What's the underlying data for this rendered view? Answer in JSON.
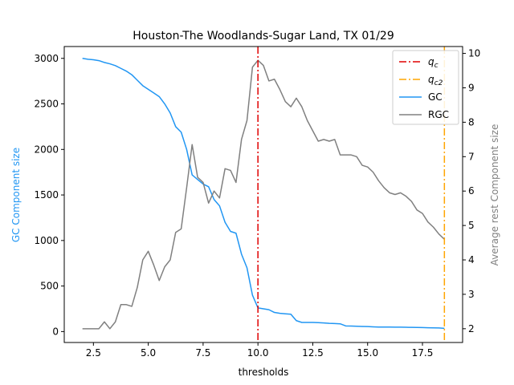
{
  "chart_data": {
    "type": "line",
    "title": "Houston-The Woodlands-Sugar Land, TX 01/29",
    "xlabel": "thresholds",
    "ylabel_left": "GC Component size",
    "ylabel_right": "Average rest Component size",
    "xlim": [
      1.17,
      19.33
    ],
    "ylim_left": [
      -120,
      3130
    ],
    "ylim_right": [
      1.6,
      10.2
    ],
    "x_ticks": [
      "2.5",
      "5.0",
      "7.5",
      "10.0",
      "12.5",
      "15.0",
      "17.5"
    ],
    "y_ticks_left": [
      "0",
      "500",
      "1000",
      "1500",
      "2000",
      "2500",
      "3000"
    ],
    "y_ticks_right": [
      "2",
      "3",
      "4",
      "5",
      "6",
      "7",
      "8",
      "9",
      "10"
    ],
    "colors": {
      "gc": "#2196f3",
      "rgc": "#808080",
      "qc": "#e00000",
      "qc2": "#ffa500",
      "left_axis_label": "#2196f3",
      "right_axis_label": "#808080"
    },
    "vlines": [
      {
        "label": "q_c",
        "x": 10.0
      },
      {
        "label": "q_c2",
        "x": 18.5
      }
    ],
    "series": [
      {
        "name": "GC",
        "axis": "left",
        "x": [
          2.0,
          2.25,
          2.5,
          2.75,
          3.0,
          3.25,
          3.5,
          3.75,
          4.0,
          4.25,
          4.5,
          4.75,
          5.0,
          5.25,
          5.5,
          5.75,
          6.0,
          6.25,
          6.5,
          6.75,
          7.0,
          7.25,
          7.5,
          7.75,
          8.0,
          8.25,
          8.5,
          8.75,
          9.0,
          9.25,
          9.5,
          9.75,
          10.0,
          10.25,
          10.5,
          10.75,
          11.0,
          11.25,
          11.5,
          11.75,
          12.0,
          12.25,
          12.5,
          12.75,
          13.0,
          13.25,
          13.5,
          13.75,
          14.0,
          14.25,
          14.5,
          14.75,
          15.0,
          15.25,
          15.5,
          15.75,
          16.0,
          16.25,
          16.5,
          16.75,
          17.0,
          17.25,
          17.5,
          17.75,
          18.0,
          18.25,
          18.5
        ],
        "values": [
          3000,
          2990,
          2985,
          2975,
          2955,
          2940,
          2920,
          2890,
          2860,
          2820,
          2760,
          2700,
          2660,
          2620,
          2580,
          2500,
          2400,
          2250,
          2190,
          2000,
          1720,
          1670,
          1620,
          1590,
          1450,
          1380,
          1200,
          1100,
          1080,
          850,
          700,
          400,
          260,
          250,
          240,
          210,
          200,
          195,
          190,
          120,
          100,
          100,
          100,
          98,
          95,
          90,
          88,
          85,
          62,
          60,
          58,
          56,
          55,
          52,
          50,
          50,
          49,
          48,
          48,
          47,
          46,
          45,
          44,
          42,
          41,
          40,
          35
        ]
      },
      {
        "name": "RGC",
        "axis": "right",
        "x": [
          2.0,
          2.25,
          2.5,
          2.75,
          3.0,
          3.25,
          3.5,
          3.75,
          4.0,
          4.25,
          4.5,
          4.75,
          5.0,
          5.25,
          5.5,
          5.75,
          6.0,
          6.25,
          6.5,
          6.75,
          7.0,
          7.25,
          7.5,
          7.75,
          8.0,
          8.25,
          8.5,
          8.75,
          9.0,
          9.25,
          9.5,
          9.75,
          10.0,
          10.25,
          10.5,
          10.75,
          11.0,
          11.25,
          11.5,
          11.75,
          12.0,
          12.25,
          12.5,
          12.75,
          13.0,
          13.25,
          13.5,
          13.75,
          14.0,
          14.25,
          14.5,
          14.75,
          15.0,
          15.25,
          15.5,
          15.75,
          16.0,
          16.25,
          16.5,
          16.75,
          17.0,
          17.25,
          17.5,
          17.75,
          18.0,
          18.25,
          18.5
        ],
        "values": [
          2.0,
          2.0,
          2.0,
          2.0,
          2.2,
          2.0,
          2.2,
          2.7,
          2.7,
          2.65,
          3.2,
          4.0,
          4.25,
          3.85,
          3.4,
          3.8,
          4.0,
          4.8,
          4.9,
          6.1,
          7.35,
          6.4,
          6.25,
          5.65,
          6.0,
          5.8,
          6.65,
          6.6,
          6.25,
          7.5,
          8.05,
          9.6,
          9.8,
          9.65,
          9.2,
          9.25,
          8.95,
          8.6,
          8.45,
          8.7,
          8.45,
          8.05,
          7.75,
          7.45,
          7.5,
          7.45,
          7.5,
          7.05,
          7.05,
          7.05,
          7.0,
          6.75,
          6.7,
          6.55,
          6.3,
          6.1,
          5.95,
          5.9,
          5.95,
          5.85,
          5.7,
          5.45,
          5.35,
          5.1,
          4.95,
          4.75,
          4.6
        ]
      }
    ],
    "legend": {
      "position": "top-right",
      "entries": [
        {
          "key": "qc",
          "base": "q",
          "sub": "c",
          "style": "dashdot",
          "color": "#e00000"
        },
        {
          "key": "qc2",
          "base": "q",
          "sub": "c2",
          "style": "dashdot",
          "color": "#ffa500"
        },
        {
          "key": "gc",
          "text": "GC",
          "style": "solid",
          "color": "#2196f3"
        },
        {
          "key": "rgc",
          "text": "RGC",
          "style": "solid",
          "color": "#808080"
        }
      ]
    }
  }
}
